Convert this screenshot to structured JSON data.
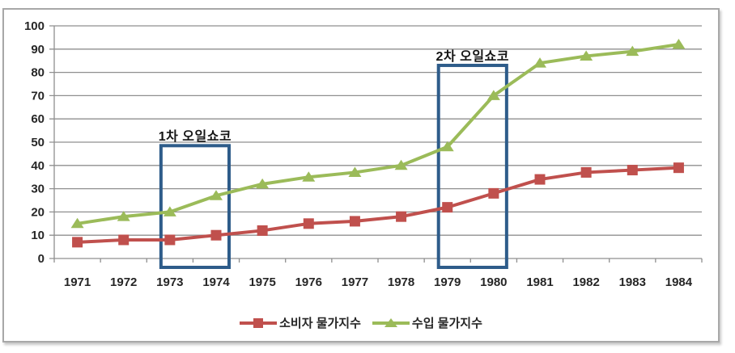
{
  "chart_data": {
    "type": "line",
    "title": "",
    "categories": [
      "1971",
      "1972",
      "1973",
      "1974",
      "1975",
      "1976",
      "1977",
      "1978",
      "1979",
      "1980",
      "1981",
      "1982",
      "1983",
      "1984"
    ],
    "series": [
      {
        "name": "소비자 물가지수",
        "color": "#C0504D",
        "marker": "square",
        "values": [
          7,
          8,
          8,
          10,
          12,
          15,
          16,
          18,
          22,
          28,
          34,
          37,
          38,
          39
        ]
      },
      {
        "name": "수입 물가지수",
        "color": "#9BBB59",
        "marker": "triangle",
        "values": [
          15,
          18,
          20,
          27,
          32,
          35,
          37,
          40,
          48,
          70,
          84,
          87,
          89,
          92
        ]
      }
    ],
    "ylim": [
      0,
      100
    ],
    "ytick_step": 10,
    "xlabel": "",
    "ylabel": "",
    "grid": "horizontal",
    "legend_position": "bottom",
    "annotations": [
      {
        "label": "1차 오일쇼코",
        "from_category": "1973",
        "to_category": "1974",
        "box_top_value": 48.5
      },
      {
        "label": "2차 오일쇼코",
        "from_category": "1979",
        "to_category": "1980",
        "box_top_value": 83
      }
    ],
    "colors": {
      "annotation_box": "#2E5C8A",
      "gridline": "#8F8F8F",
      "axis_text": "#262626",
      "frame_border": "#A8A8A8",
      "background": "#FFFFFF"
    }
  }
}
